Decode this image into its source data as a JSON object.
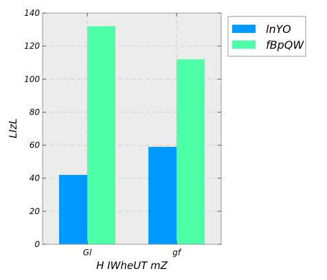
{
  "chart_data": {
    "type": "bar",
    "title": "",
    "xlabel": "H IWheUT  mZ",
    "ylabel": "LIzL",
    "categories": [
      "Gl",
      "gf"
    ],
    "series": [
      {
        "name": "lnYO",
        "values": [
          42,
          59
        ],
        "color": "#0099ff"
      },
      {
        "name": "fBpQW",
        "values": [
          132,
          112
        ],
        "color": "#4dffa6"
      }
    ],
    "ylim": [
      0,
      140
    ],
    "yticks": [
      0,
      20,
      40,
      60,
      80,
      100,
      120,
      140
    ],
    "grid": true,
    "legend_position": "outside-top-right",
    "plot_background": "#ececec"
  }
}
